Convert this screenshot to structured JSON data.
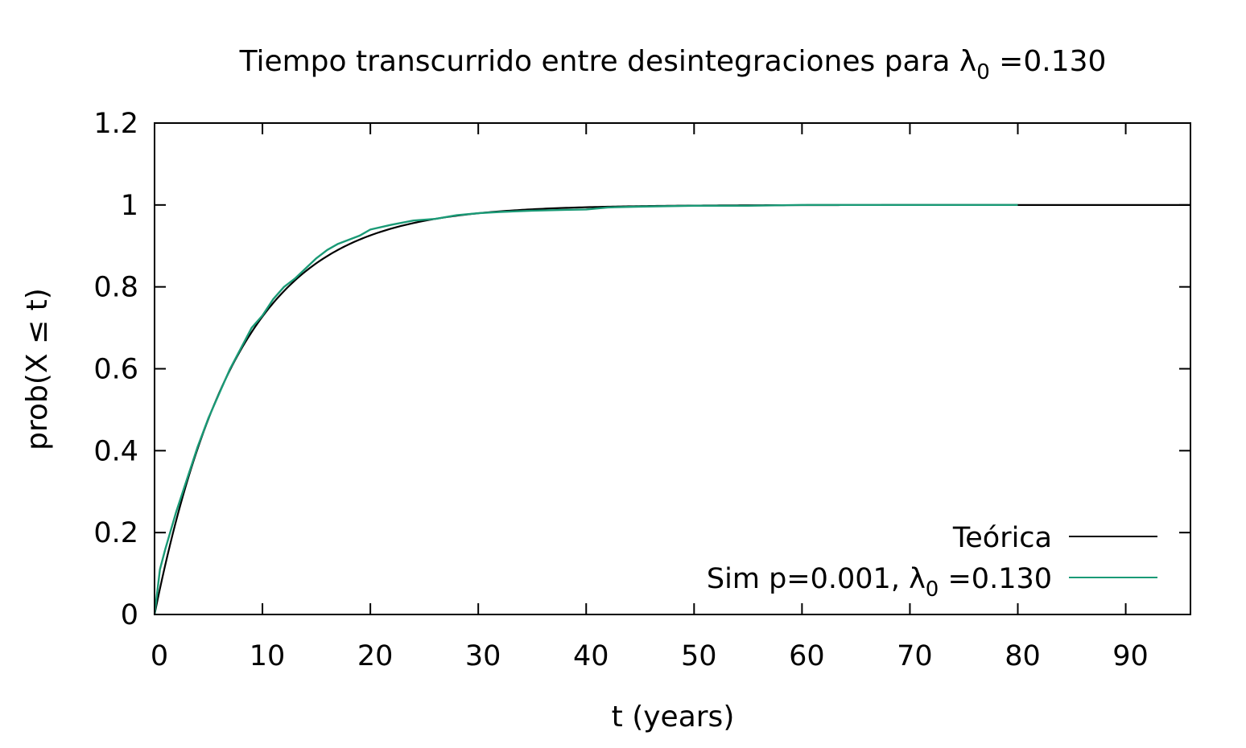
{
  "chart_data": {
    "type": "line",
    "title_prefix": "Tiempo transcurrido entre desintegraciones para λ",
    "title_sub": "0",
    "title_suffix": " =0.130",
    "xlabel": "t (years)",
    "ylabel": "prob(X ≤ t)",
    "xlim": [
      0,
      96
    ],
    "ylim": [
      0,
      1.2
    ],
    "x_ticks": [
      0,
      10,
      20,
      30,
      40,
      50,
      60,
      70,
      80,
      90
    ],
    "y_ticks": [
      {
        "value": 0,
        "label": "0"
      },
      {
        "value": 0.2,
        "label": "0.2"
      },
      {
        "value": 0.4,
        "label": "0.4"
      },
      {
        "value": 0.6,
        "label": "0.6"
      },
      {
        "value": 0.8,
        "label": "0.8"
      },
      {
        "value": 1.0,
        "label": "1"
      },
      {
        "value": 1.2,
        "label": "1.2"
      }
    ],
    "grid": false,
    "legend_position": "bottom-right",
    "series": [
      {
        "name": "Teórica",
        "color": "#000000",
        "lambda": 0.13,
        "x": [
          0,
          1,
          2,
          3,
          4,
          5,
          6,
          7,
          8,
          9,
          10,
          12,
          14,
          16,
          18,
          20,
          22,
          24,
          26,
          28,
          30,
          34,
          38,
          42,
          46,
          50,
          60,
          70,
          80,
          90,
          96
        ],
        "values": [
          0,
          0.122,
          0.229,
          0.323,
          0.405,
          0.478,
          0.542,
          0.598,
          0.647,
          0.69,
          0.727,
          0.79,
          0.838,
          0.875,
          0.904,
          0.926,
          0.943,
          0.956,
          0.966,
          0.974,
          0.98,
          0.988,
          0.993,
          0.996,
          0.997,
          0.998,
          1.0,
          1.0,
          1.0,
          1.0,
          1.0
        ]
      },
      {
        "name_prefix": "Sim p=0.001, λ",
        "name_sub": "0",
        "name_suffix": " =0.130",
        "color": "#1a9a76",
        "x": [
          0,
          0.5,
          1,
          2,
          3,
          4,
          5,
          6,
          7,
          8,
          9,
          10,
          11,
          12,
          13,
          14,
          15,
          16,
          17,
          18,
          19,
          20,
          22,
          24,
          26,
          28,
          30,
          32,
          35,
          38,
          40,
          42,
          45,
          50,
          55,
          60,
          70,
          80
        ],
        "values": [
          0,
          0.11,
          0.16,
          0.25,
          0.33,
          0.41,
          0.48,
          0.54,
          0.6,
          0.65,
          0.7,
          0.73,
          0.77,
          0.8,
          0.82,
          0.845,
          0.87,
          0.89,
          0.905,
          0.915,
          0.925,
          0.94,
          0.952,
          0.962,
          0.966,
          0.975,
          0.98,
          0.983,
          0.986,
          0.988,
          0.989,
          0.994,
          0.996,
          0.998,
          0.998,
          1.0,
          1.0,
          1.0
        ]
      }
    ]
  }
}
